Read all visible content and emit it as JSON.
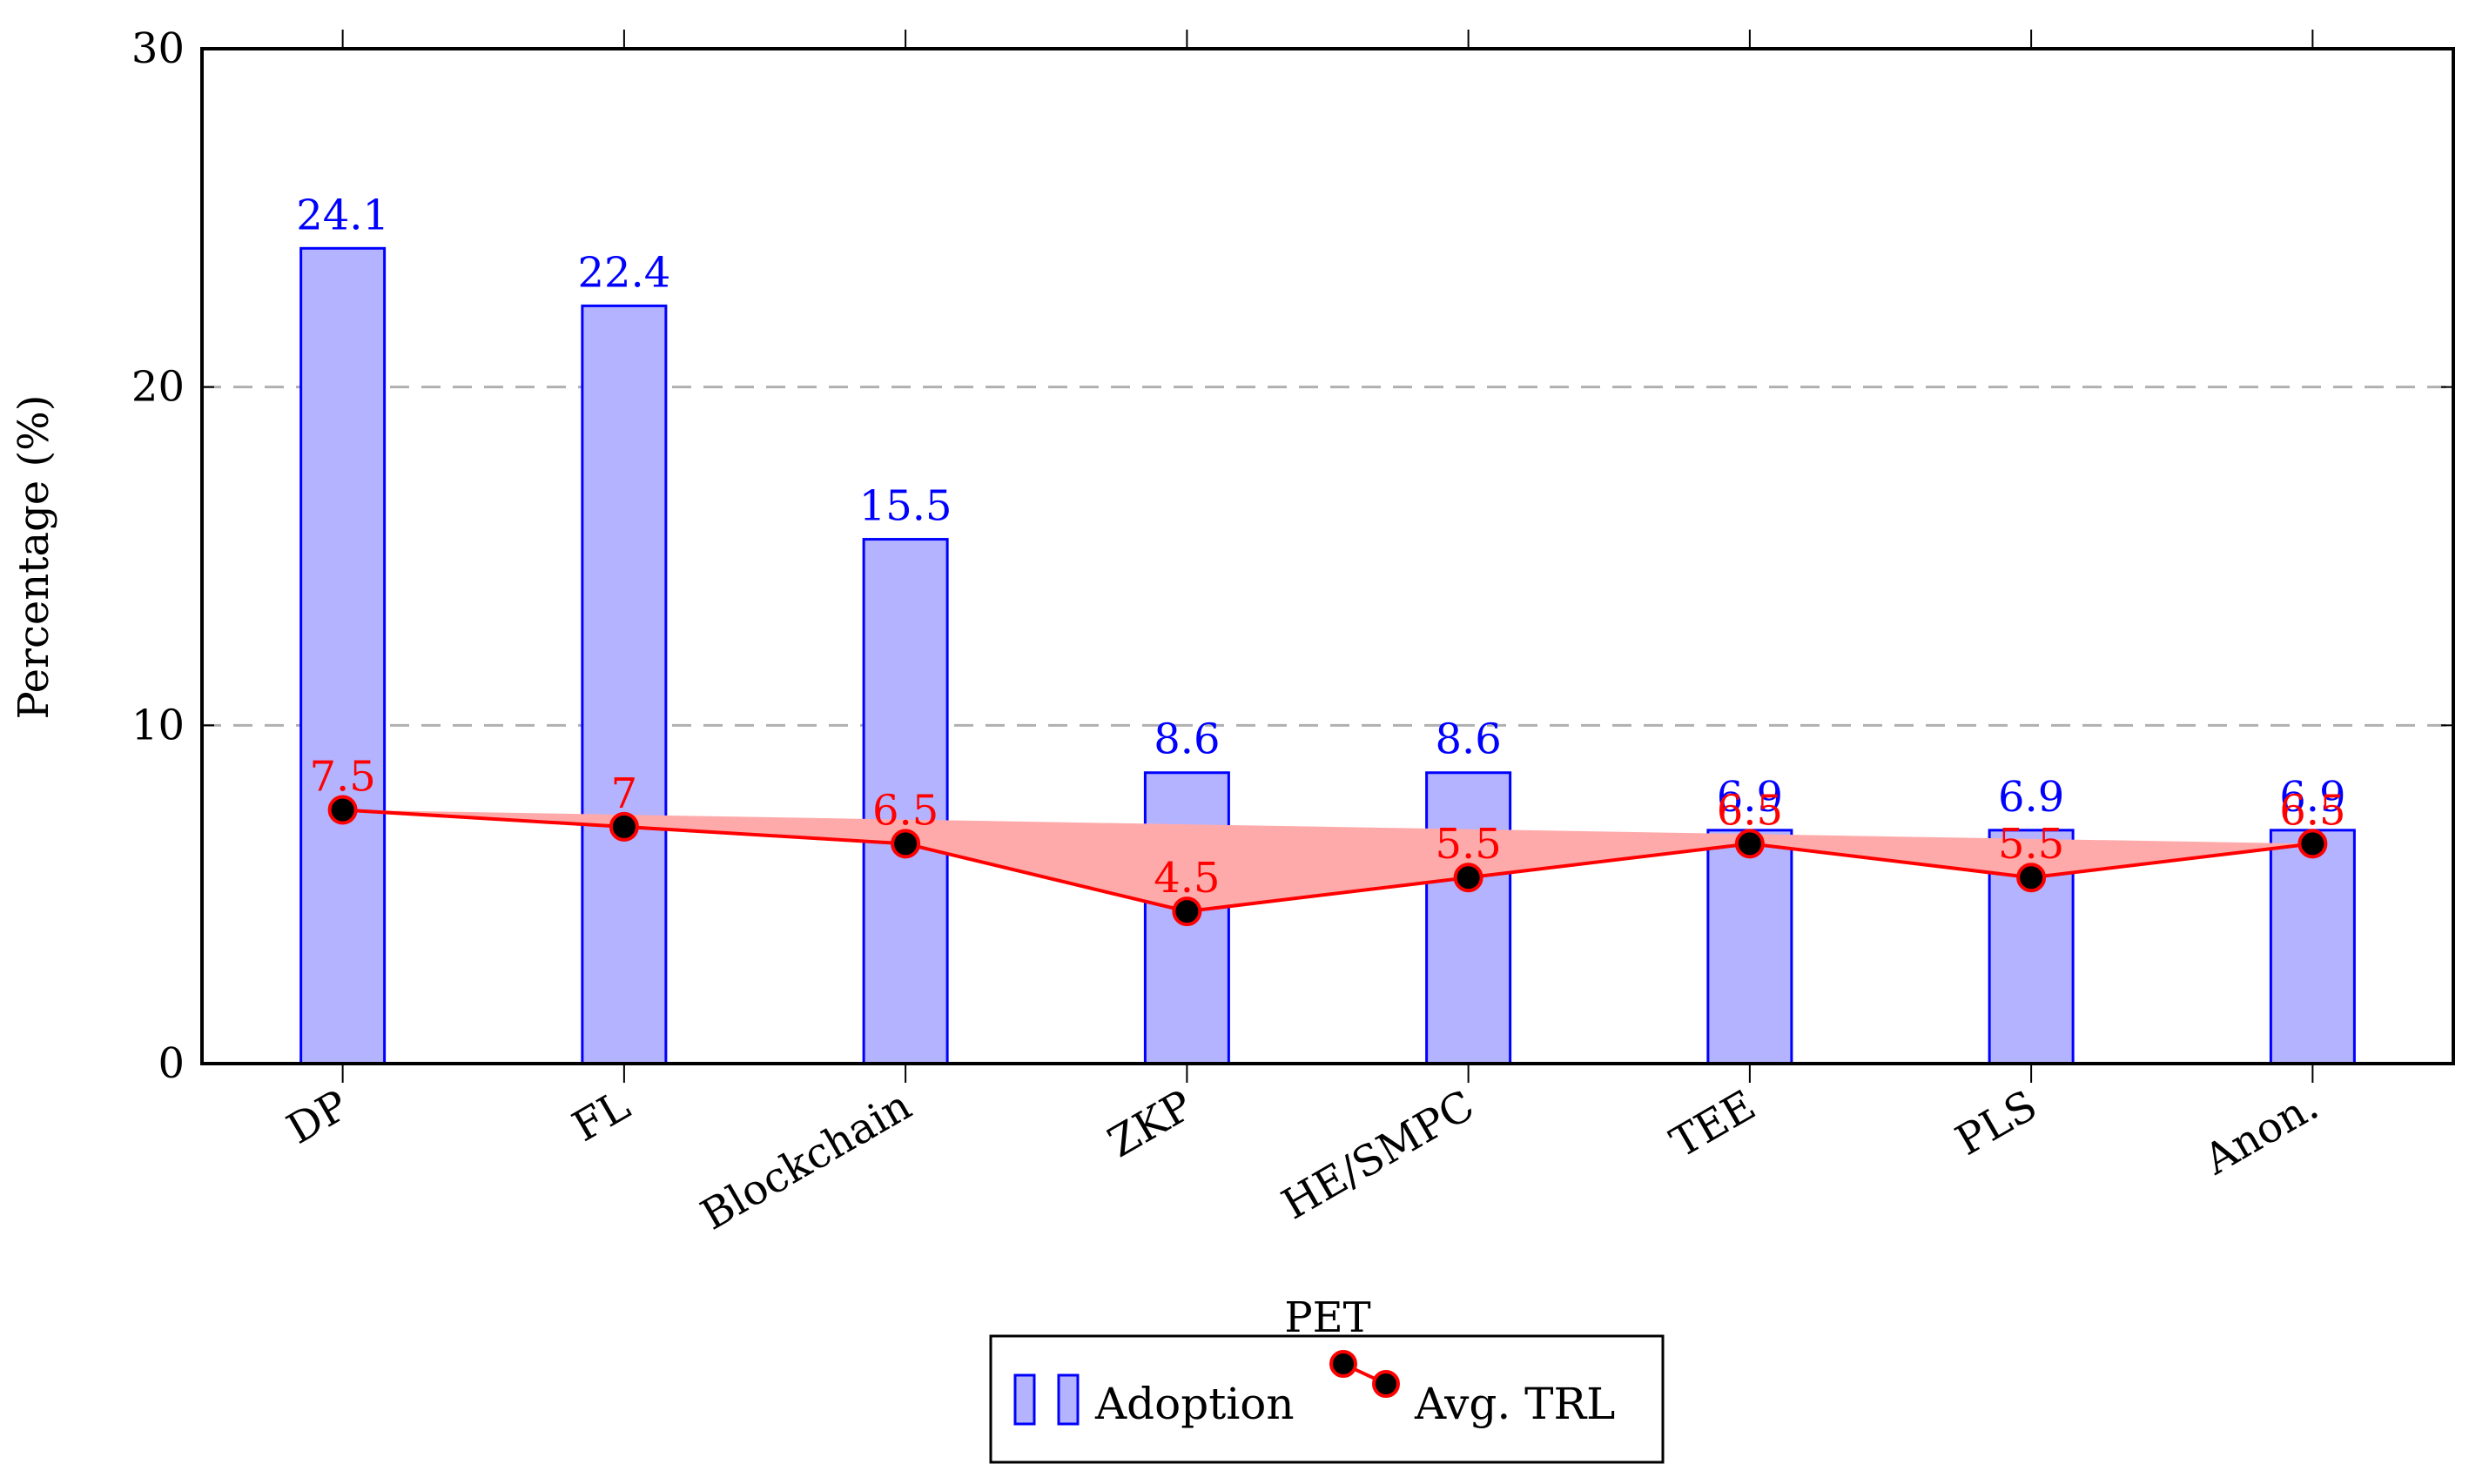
{
  "chart_data": {
    "type": "bar",
    "categories": [
      "DP",
      "FL",
      "Blockchain",
      "ZKP",
      "HE/SMPC",
      "TEE",
      "PLS",
      "Anon."
    ],
    "series": [
      {
        "name": "Adoption",
        "kind": "bar",
        "values": [
          24.1,
          22.4,
          15.5,
          8.6,
          8.6,
          6.9,
          6.9,
          6.9
        ],
        "labels": [
          "24.1",
          "22.4",
          "15.5",
          "8.6",
          "8.6",
          "6.9",
          "6.9",
          "6.9"
        ],
        "color": "#0000ff",
        "fill": "#b3b3ff"
      },
      {
        "name": "Avg. TRL",
        "kind": "line",
        "values": [
          7.5,
          7,
          6.5,
          4.5,
          5.5,
          6.5,
          5.5,
          6.5
        ],
        "labels": [
          "7.5",
          "7",
          "6.5",
          "4.5",
          "5.5",
          "6.5",
          "5.5",
          "6.5"
        ],
        "color": "#ff0000",
        "fill": "#ffaaaa",
        "marker_fill": "#000000"
      }
    ],
    "title": "",
    "xlabel": "PET",
    "ylabel": "Percentage (%)",
    "ylim": [
      0,
      30
    ],
    "yticks": [
      0,
      10,
      20,
      30
    ],
    "ytick_labels": [
      "0",
      "10",
      "20",
      "30"
    ],
    "grid": "horizontal dashed",
    "legend_position": "bottom-center"
  }
}
